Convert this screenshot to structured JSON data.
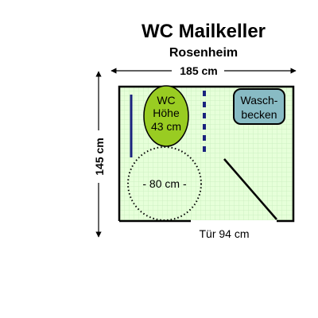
{
  "title": "WC Mailkeller",
  "subtitle": "Rosenheim",
  "dimensions": {
    "width_label": "185 cm",
    "height_label": "145 cm",
    "door_label": "Tür 94 cm",
    "turning_circle_label": "- 80 cm -"
  },
  "wc": {
    "line1": "WC",
    "line2": "Höhe",
    "line3": "43 cm"
  },
  "sink": {
    "line1": "Wasch-",
    "line2": "becken"
  },
  "colors": {
    "floor": "#e6ffd9",
    "floor_grid": "#c8eebd",
    "wall": "#000000",
    "wc_fill": "#99cc22",
    "sink_fill": "#88bbc4",
    "grab_bar": "#1a237e"
  }
}
